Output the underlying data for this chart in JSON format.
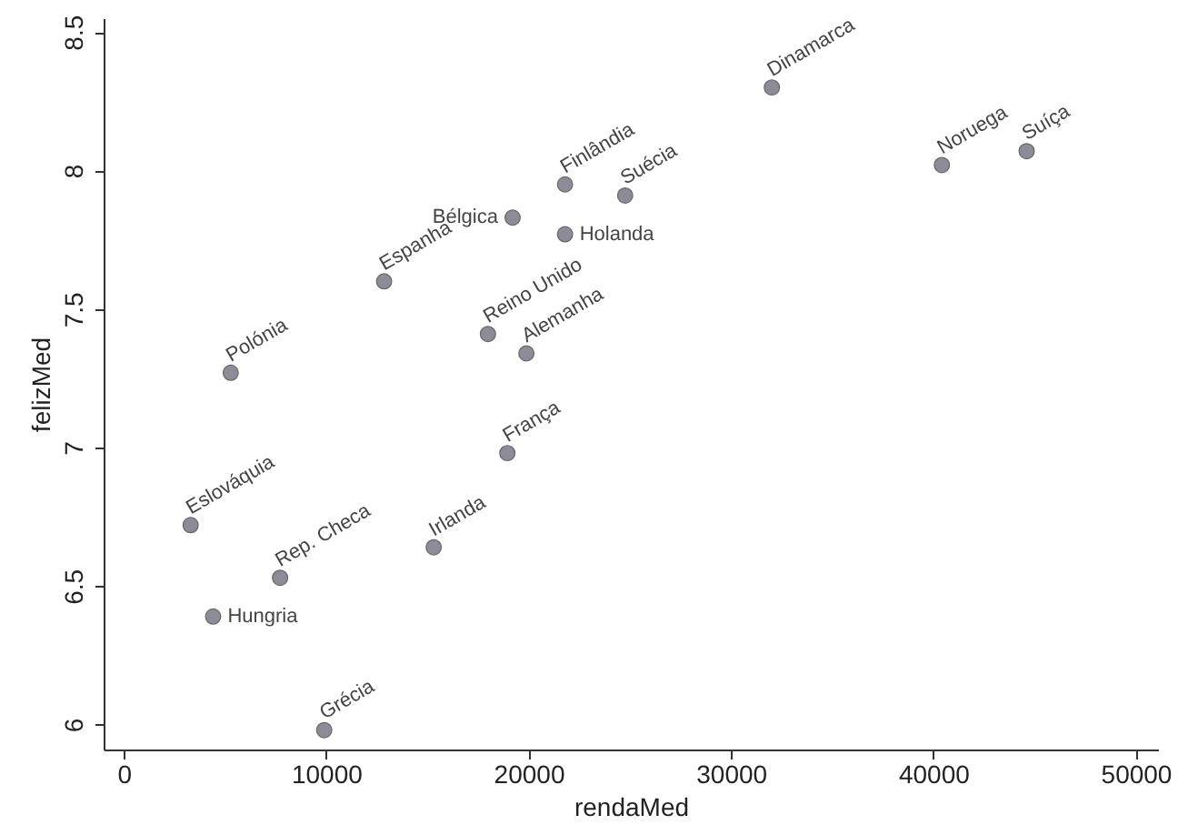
{
  "chart_data": {
    "type": "scatter",
    "xlabel": "rendaMed",
    "ylabel": "felizMed",
    "x": [
      32020,
      40420,
      44610,
      19210,
      21800,
      21800,
      24770,
      12860,
      17990,
      19890,
      5280,
      18950,
      3300,
      4410,
      7720,
      15310,
      9900
    ],
    "series": [
      {
        "color": "#8c8c99",
        "values": [
          8.3,
          8.02,
          8.07,
          7.83,
          7.95,
          7.77,
          7.91,
          7.6,
          7.41,
          7.34,
          7.27,
          6.98,
          6.72,
          6.39,
          6.53,
          6.64,
          5.98
        ]
      }
    ],
    "annotations": [
      {
        "text": "Dinamarca",
        "x": 32020,
        "y": 8.3
      },
      {
        "text": "Noruega",
        "x": 40420,
        "y": 8.02
      },
      {
        "text": "Suíça",
        "x": 44610,
        "y": 8.07
      },
      {
        "text": "Bélgica",
        "x": 19210,
        "y": 7.83
      },
      {
        "text": "Finlândia",
        "x": 21800,
        "y": 7.95
      },
      {
        "text": "Holanda",
        "x": 21800,
        "y": 7.77
      },
      {
        "text": "Suécia",
        "x": 24770,
        "y": 7.91
      },
      {
        "text": "Espanha",
        "x": 12860,
        "y": 7.6
      },
      {
        "text": "Reino Unido",
        "x": 17990,
        "y": 7.41
      },
      {
        "text": "Alemanha",
        "x": 19890,
        "y": 7.34
      },
      {
        "text": "Polónia",
        "x": 5280,
        "y": 7.27
      },
      {
        "text": "França",
        "x": 18950,
        "y": 6.98
      },
      {
        "text": "Eslováquia",
        "x": 3300,
        "y": 6.72
      },
      {
        "text": "Hungria",
        "x": 4410,
        "y": 6.39
      },
      {
        "text": "Rep. Checa",
        "x": 7720,
        "y": 6.53
      },
      {
        "text": "Irlanda",
        "x": 15310,
        "y": 6.64
      },
      {
        "text": "Grécia",
        "x": 9900,
        "y": 5.98
      }
    ],
    "xlim": [
      -1000,
      51100
    ],
    "ylim": [
      5.91,
      8.55
    ],
    "xticks": [
      0,
      10000,
      20000,
      30000,
      40000,
      50000
    ],
    "yticks": [
      6,
      6.5,
      7,
      7.5,
      8,
      8.5
    ],
    "grid": false,
    "marker": "circle"
  }
}
